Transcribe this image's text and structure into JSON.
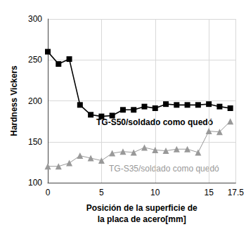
{
  "chart_data": {
    "type": "line",
    "x_label": "Posición de la superficie de\nla placa de acero[mm]",
    "y_label": "Hardness Vickers",
    "x": [
      0,
      1,
      2,
      3,
      4,
      5,
      6,
      7,
      8,
      9,
      10,
      11,
      12,
      13,
      14,
      15,
      16,
      17
    ],
    "series": [
      {
        "name": "TG-S50/soldado como quedó",
        "color": "#000000",
        "marker": "square",
        "line_style": "solid",
        "values": [
          260,
          245,
          251,
          195,
          183,
          181,
          182,
          189,
          189,
          193,
          191,
          196,
          195,
          195,
          195,
          196,
          193,
          191
        ]
      },
      {
        "name": "TG-S35/soldado como quedó",
        "color": "#999999",
        "marker": "triangle",
        "line_style": "solid",
        "values": [
          120,
          120,
          124,
          133,
          130,
          127,
          136,
          138,
          137,
          143,
          140,
          139,
          141,
          141,
          137,
          163,
          162,
          175
        ]
      }
    ],
    "xlim": [
      0,
      17.5
    ],
    "xticks": [
      0,
      5,
      10,
      15
    ],
    "ylim": [
      100,
      300
    ],
    "yticks": [
      100,
      150,
      200,
      250,
      300
    ],
    "grid": true
  }
}
